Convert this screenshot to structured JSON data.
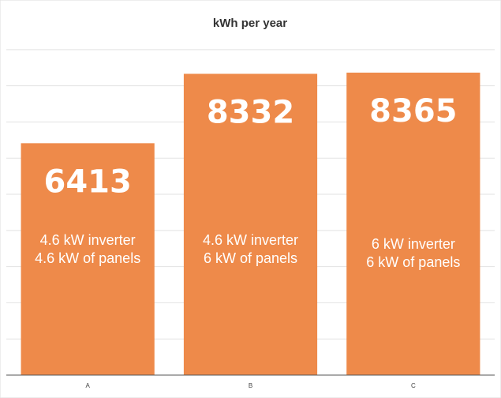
{
  "chart_data": {
    "type": "bar",
    "title": "kWh per year",
    "xlabel": "",
    "ylabel": "",
    "categories": [
      "A",
      "B",
      "C"
    ],
    "values": [
      6413,
      8332,
      8365
    ],
    "value_labels": [
      "6413",
      "8332",
      "8365"
    ],
    "descriptions": [
      [
        "4.6 kW inverter",
        "4.6 kW of panels"
      ],
      [
        "4.6 kW inverter",
        "6 kW of panels"
      ],
      [
        "6 kW inverter",
        "6 kW of panels"
      ]
    ],
    "ylim": [
      0,
      9500
    ],
    "grid": true,
    "legend": "none",
    "colors": {
      "bar": "#EE8A4A",
      "grid": "#E2E2E2",
      "axis": "#555555"
    }
  }
}
